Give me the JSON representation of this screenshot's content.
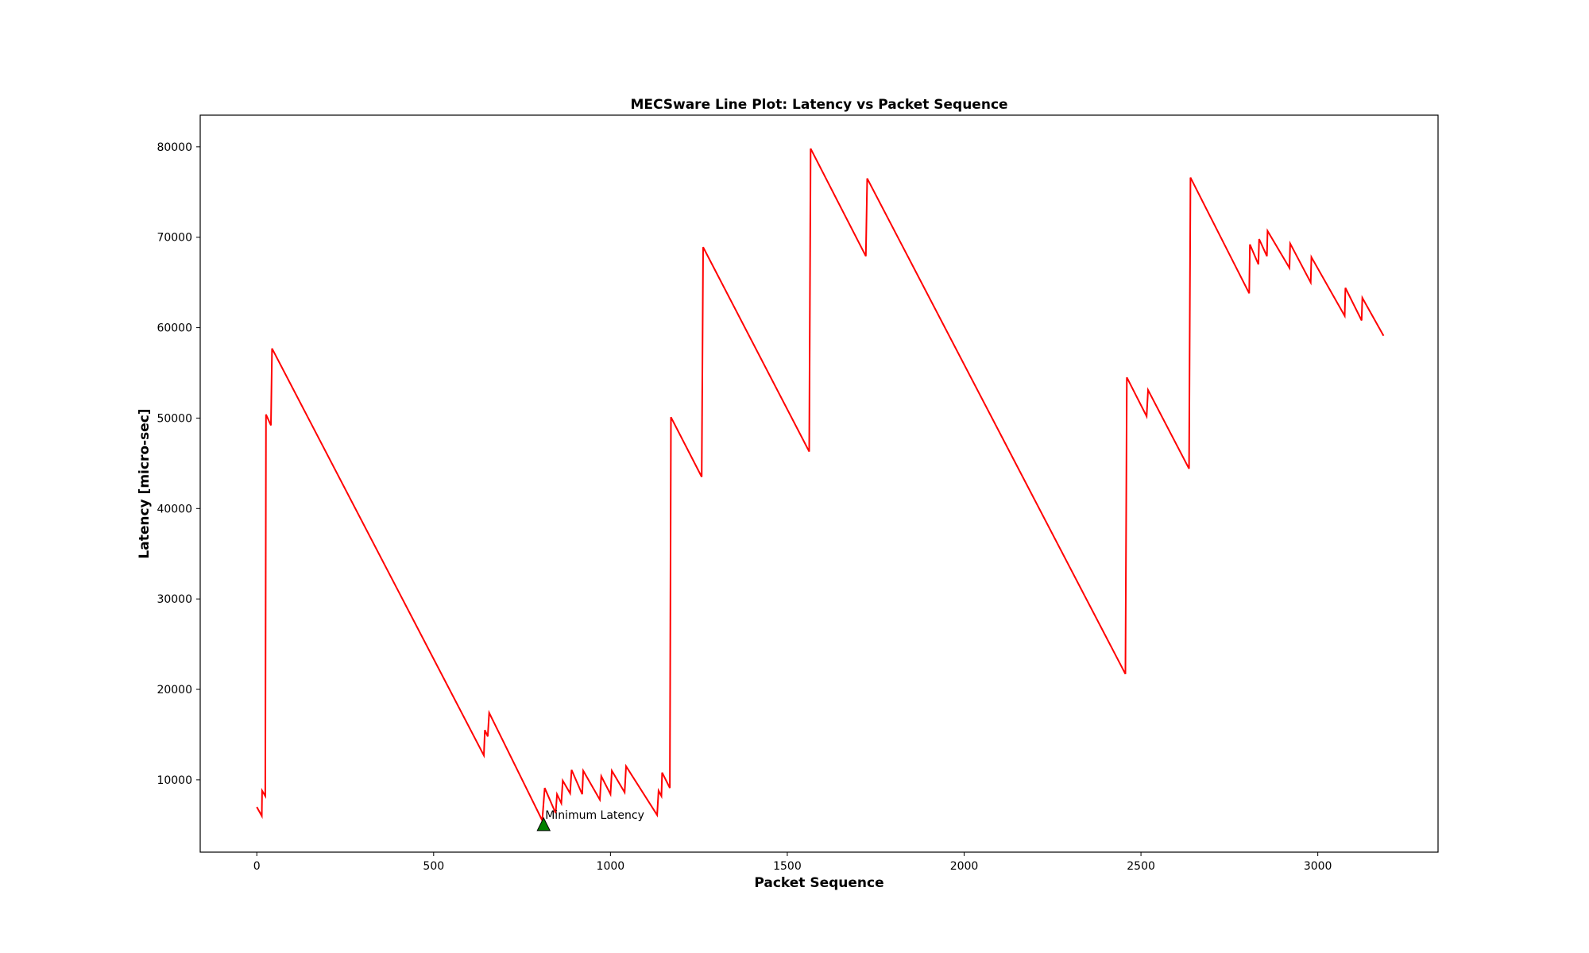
{
  "chart_data": {
    "type": "line",
    "title": "MECSware Line Plot: Latency vs Packet Sequence",
    "xlabel": "Packet Sequence",
    "ylabel": "Latency [micro-sec]",
    "xlim": [
      -160,
      3340
    ],
    "ylim": [
      2000,
      83500
    ],
    "x_ticks": [
      0,
      500,
      1000,
      1500,
      2000,
      2500,
      3000
    ],
    "y_ticks": [
      10000,
      20000,
      30000,
      40000,
      50000,
      60000,
      70000,
      80000
    ],
    "grid": false,
    "series": [
      {
        "name": "Latency",
        "color": "#ff0000",
        "points": [
          [
            0,
            7000
          ],
          [
            14,
            6000
          ],
          [
            15,
            8800
          ],
          [
            24,
            8200
          ],
          [
            26,
            50400
          ],
          [
            40,
            49200
          ],
          [
            43,
            57700
          ],
          [
            642,
            12700
          ],
          [
            645,
            15500
          ],
          [
            653,
            14800
          ],
          [
            657,
            17400
          ],
          [
            807,
            5500
          ],
          [
            814,
            9100
          ],
          [
            845,
            6300
          ],
          [
            849,
            8400
          ],
          [
            861,
            7400
          ],
          [
            865,
            9900
          ],
          [
            886,
            8500
          ],
          [
            890,
            11100
          ],
          [
            920,
            8400
          ],
          [
            923,
            11000
          ],
          [
            970,
            7800
          ],
          [
            974,
            10400
          ],
          [
            1000,
            8400
          ],
          [
            1004,
            11000
          ],
          [
            1040,
            8600
          ],
          [
            1044,
            11500
          ],
          [
            1132,
            6100
          ],
          [
            1136,
            8800
          ],
          [
            1144,
            8200
          ],
          [
            1146,
            10800
          ],
          [
            1168,
            9100
          ],
          [
            1171,
            50100
          ],
          [
            1258,
            43500
          ],
          [
            1262,
            68900
          ],
          [
            1562,
            46300
          ],
          [
            1566,
            79800
          ],
          [
            1722,
            67900
          ],
          [
            1726,
            76500
          ],
          [
            2456,
            21700
          ],
          [
            2460,
            54500
          ],
          [
            2516,
            50200
          ],
          [
            2520,
            53100
          ],
          [
            2636,
            44400
          ],
          [
            2640,
            76600
          ],
          [
            2806,
            63800
          ],
          [
            2808,
            69200
          ],
          [
            2832,
            67000
          ],
          [
            2834,
            69800
          ],
          [
            2856,
            67900
          ],
          [
            2858,
            70700
          ],
          [
            2920,
            66600
          ],
          [
            2922,
            69300
          ],
          [
            2980,
            65000
          ],
          [
            2982,
            67800
          ],
          [
            3076,
            61300
          ],
          [
            3078,
            64400
          ],
          [
            3124,
            60800
          ],
          [
            3126,
            63300
          ],
          [
            3186,
            59100
          ]
        ]
      }
    ],
    "annotations": [
      {
        "text": "Minimum Latency",
        "x": 811,
        "y": 5000,
        "marker": "triangle-up",
        "marker_color": "#008000"
      }
    ]
  }
}
